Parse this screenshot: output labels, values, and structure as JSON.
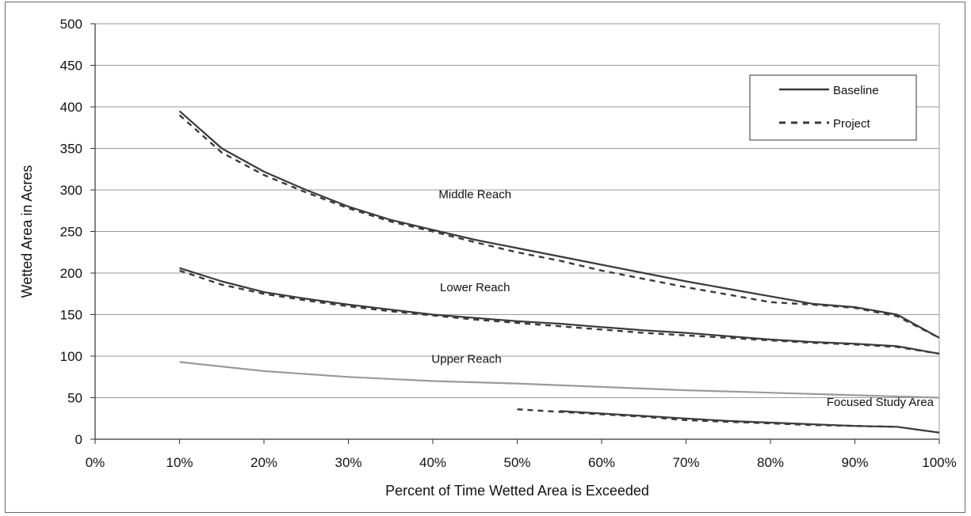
{
  "chart_data": {
    "type": "line",
    "title": "",
    "xlabel": "Percent of Time Wetted Area is Exceeded",
    "ylabel": "Wetted Area in Acres",
    "xlim": [
      0,
      100
    ],
    "ylim": [
      0,
      500
    ],
    "x_ticks": [
      "0%",
      "10%",
      "20%",
      "30%",
      "40%",
      "50%",
      "60%",
      "70%",
      "80%",
      "90%",
      "100%"
    ],
    "y_ticks": [
      "0",
      "50",
      "100",
      "150",
      "200",
      "250",
      "300",
      "350",
      "400",
      "450",
      "500"
    ],
    "grid": "horizontal",
    "legend": {
      "position": "top-right",
      "entries": [
        {
          "label": "Baseline",
          "style": "solid"
        },
        {
          "label": "Project",
          "style": "dashed"
        }
      ]
    },
    "series": [
      {
        "name": "Baseline",
        "group": "Middle Reach",
        "style": "solid",
        "color": "#3a3a3a",
        "x": [
          10,
          15,
          20,
          25,
          30,
          35,
          40,
          45,
          50,
          55,
          60,
          65,
          70,
          75,
          80,
          85,
          90,
          95,
          100
        ],
        "y": [
          395,
          350,
          322,
          300,
          280,
          264,
          252,
          240,
          230,
          220,
          210,
          200,
          190,
          181,
          172,
          163,
          159,
          150,
          122
        ]
      },
      {
        "name": "Project",
        "group": "Middle Reach",
        "style": "dashed",
        "color": "#3a3a3a",
        "x": [
          10,
          15,
          20,
          25,
          30,
          35,
          40,
          45,
          50,
          55,
          60,
          65,
          70,
          75,
          80,
          85,
          90,
          95,
          100
        ],
        "y": [
          390,
          345,
          318,
          297,
          278,
          262,
          250,
          237,
          225,
          215,
          203,
          193,
          183,
          174,
          165,
          162,
          158,
          148,
          122
        ]
      },
      {
        "name": "Baseline",
        "group": "Lower Reach",
        "style": "solid",
        "color": "#3a3a3a",
        "x": [
          10,
          15,
          20,
          25,
          30,
          35,
          40,
          45,
          50,
          55,
          60,
          65,
          70,
          75,
          80,
          85,
          90,
          95,
          100
        ],
        "y": [
          206,
          190,
          177,
          169,
          162,
          156,
          150,
          146,
          142,
          139,
          135,
          131,
          128,
          124,
          120,
          117,
          115,
          112,
          103
        ]
      },
      {
        "name": "Project",
        "group": "Lower Reach",
        "style": "dashed",
        "color": "#3a3a3a",
        "x": [
          10,
          15,
          20,
          25,
          30,
          35,
          40,
          45,
          50,
          55,
          60,
          65,
          70,
          75,
          80,
          85,
          90,
          95,
          100
        ],
        "y": [
          203,
          186,
          175,
          167,
          160,
          154,
          149,
          144,
          140,
          136,
          132,
          128,
          125,
          122,
          119,
          116,
          114,
          111,
          103
        ]
      },
      {
        "name": "Baseline",
        "group": "Upper Reach",
        "style": "solid",
        "color": "#9a9a9a",
        "x": [
          10,
          20,
          30,
          40,
          50,
          60,
          70,
          80,
          90,
          100
        ],
        "y": [
          93,
          82,
          75,
          70,
          67,
          63,
          59,
          56,
          53,
          50
        ]
      },
      {
        "name": "Baseline",
        "group": "Focused Study Area",
        "style": "solid",
        "color": "#3a3a3a",
        "x": [
          55,
          60,
          65,
          70,
          75,
          80,
          85,
          90,
          95,
          100
        ],
        "y": [
          34,
          31,
          28,
          25,
          22,
          20,
          18,
          16,
          15,
          8
        ]
      },
      {
        "name": "Project",
        "group": "Focused Study Area",
        "style": "dashed",
        "color": "#3a3a3a",
        "x": [
          50,
          55,
          60,
          65,
          70,
          75,
          80,
          85,
          90,
          95
        ],
        "y": [
          36,
          33,
          30,
          27,
          23,
          21,
          19,
          17,
          16,
          15
        ]
      }
    ],
    "annotations": [
      {
        "text": "Middle Reach",
        "x": 45,
        "y": 290
      },
      {
        "text": "Lower Reach",
        "x": 45,
        "y": 178
      },
      {
        "text": "Upper Reach",
        "x": 44,
        "y": 92
      },
      {
        "text": "Focused Study Area",
        "x": 93,
        "y": 40
      }
    ]
  }
}
